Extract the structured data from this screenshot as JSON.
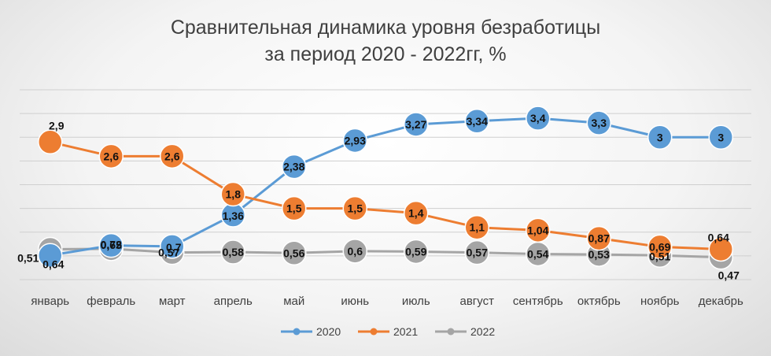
{
  "chart_data": {
    "type": "line",
    "title_lines": [
      "Сравнительная динамика уровня безработицы",
      "за период 2020 - 2022гг, %"
    ],
    "categories": [
      "январь",
      "февраль",
      "март",
      "апрель",
      "май",
      "июнь",
      "июль",
      "август",
      "сентябрь",
      "октябрь",
      "ноябрь",
      "декабрь"
    ],
    "series": [
      {
        "name": "2020",
        "color": "#5b9bd5",
        "values": [
          0.51,
          0.72,
          0.7,
          1.36,
          2.38,
          2.93,
          3.27,
          3.34,
          3.4,
          3.3,
          3,
          3
        ],
        "labels": [
          "0,51",
          "0,72",
          "0,7",
          "1,36",
          "2,38",
          "2,93",
          "3,27",
          "3,34",
          "3,4",
          "3,3",
          "3",
          "3"
        ]
      },
      {
        "name": "2021",
        "color": "#ed7d31",
        "values": [
          2.9,
          2.6,
          2.6,
          1.8,
          1.5,
          1.5,
          1.4,
          1.1,
          1.04,
          0.87,
          0.69,
          0.64
        ],
        "labels": [
          "2,9",
          "2,6",
          "2,6",
          "1,8",
          "1,5",
          "1,5",
          "1,4",
          "1,1",
          "1,04",
          "0,87",
          "0,69",
          "0,64"
        ]
      },
      {
        "name": "2022",
        "color": "#a5a5a5",
        "values": [
          0.64,
          0.65,
          0.57,
          0.58,
          0.56,
          0.6,
          0.59,
          0.57,
          0.54,
          0.53,
          0.51,
          0.47
        ],
        "labels": [
          "0,64",
          "0,65",
          "0,57",
          "0,58",
          "0,56",
          "0,6",
          "0,59",
          "0,57",
          "0,54",
          "0,53",
          "0,51",
          "0,47"
        ]
      }
    ],
    "ylim": [
      0,
      4
    ],
    "grid": true,
    "legend_position": "bottom"
  }
}
